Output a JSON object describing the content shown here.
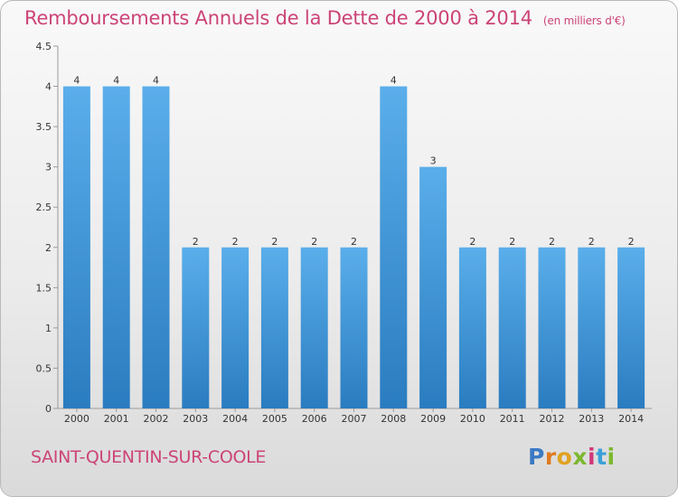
{
  "header": {
    "title": "Remboursements Annuels de la Dette de 2000 à 2014",
    "unit": "(en milliers d'€)"
  },
  "footer": {
    "commune": "SAINT-QUENTIN-SUR-COOLE",
    "logo": "Proxiti"
  },
  "colors": {
    "accent_text": "#cc4477",
    "bar_top": "#5aaeea",
    "bar_bottom": "#2a7cc0"
  },
  "chart_data": {
    "type": "bar",
    "title": "Remboursements Annuels de la Dette de 2000 à 2014",
    "unit_note": "(en milliers d'€)",
    "xlabel": "",
    "ylabel": "",
    "categories": [
      "2000",
      "2001",
      "2002",
      "2003",
      "2004",
      "2005",
      "2006",
      "2007",
      "2008",
      "2009",
      "2010",
      "2011",
      "2012",
      "2013",
      "2014"
    ],
    "values": [
      4,
      4,
      4,
      2,
      2,
      2,
      2,
      2,
      4,
      3,
      2,
      2,
      2,
      2,
      2
    ],
    "data_labels": [
      "4",
      "4",
      "4",
      "2",
      "2",
      "2",
      "2",
      "2",
      "4",
      "3",
      "2",
      "2",
      "2",
      "2",
      "2"
    ],
    "ylim": [
      0,
      4.5
    ],
    "yticks": [
      0,
      0.5,
      1,
      1.5,
      2,
      2.5,
      3,
      3.5,
      4,
      4.5
    ],
    "ytick_labels": [
      "0",
      "0.5",
      "1",
      "1.5",
      "2",
      "2.5",
      "3",
      "3.5",
      "4",
      "4.5"
    ],
    "grid": false,
    "legend": "none"
  }
}
